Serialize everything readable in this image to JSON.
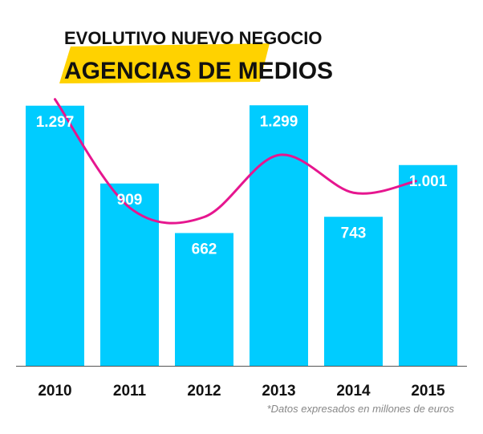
{
  "chart_data": {
    "type": "bar",
    "title": "EVOLUTIVO NUEVO NEGOCIO",
    "subtitle": "AGENCIAS DE MEDIOS",
    "categories": [
      "2010",
      "2011",
      "2012",
      "2013",
      "2014",
      "2015"
    ],
    "values": [
      1297,
      909,
      662,
      1299,
      743,
      1001
    ],
    "value_labels": [
      "1.297",
      "909",
      "662",
      "1.299",
      "743",
      "1.001"
    ],
    "xlabel": "",
    "ylabel": "",
    "ylim": [
      0,
      1600
    ],
    "grid": false,
    "trend_line": "smoothed curve through the bar values",
    "note": "*Datos expresados en millones de euros",
    "colors": {
      "bar": "#00CCFF",
      "trend": "#E6168F",
      "highlight": "#FFD200",
      "text": "#111111",
      "value_label": "#FFFFFF",
      "note": "#888888"
    }
  }
}
